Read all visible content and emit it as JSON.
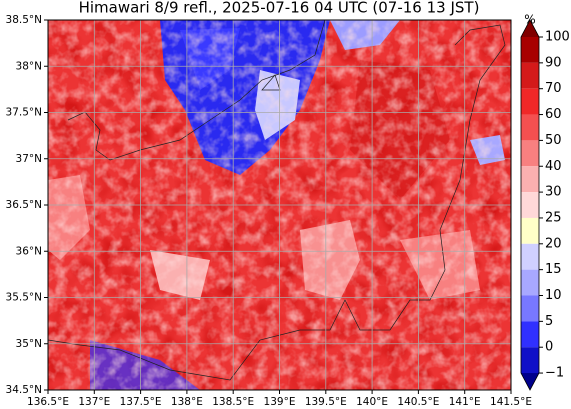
{
  "map": {
    "title": "Himawari 8/9 refl., 2025-07-16 04 UTC (07-16 13 JST)",
    "xlim": [
      136.5,
      141.5
    ],
    "ylim": [
      34.5,
      38.5
    ],
    "xticks": [
      {
        "value": 136.5,
        "label": "136.5°E"
      },
      {
        "value": 137,
        "label": "137°E"
      },
      {
        "value": 137.5,
        "label": "137.5°E"
      },
      {
        "value": 138,
        "label": "138°E"
      },
      {
        "value": 138.5,
        "label": "138.5°E"
      },
      {
        "value": 139,
        "label": "139°E"
      },
      {
        "value": 139.5,
        "label": "139.5°E"
      },
      {
        "value": 140,
        "label": "140°E"
      },
      {
        "value": 140.5,
        "label": "140.5°E"
      },
      {
        "value": 141,
        "label": "141°E"
      },
      {
        "value": 141.5,
        "label": "141.5°E"
      }
    ],
    "yticks": [
      {
        "value": 34.5,
        "label": "34.5°N"
      },
      {
        "value": 35,
        "label": "35°N"
      },
      {
        "value": 35.5,
        "label": "35.5°N"
      },
      {
        "value": 36,
        "label": "36°N"
      },
      {
        "value": 36.5,
        "label": "36.5°N"
      },
      {
        "value": 37,
        "label": "37°N"
      },
      {
        "value": 37.5,
        "label": "37.5°N"
      },
      {
        "value": 38,
        "label": "38°N"
      },
      {
        "value": 38.5,
        "label": "38.5°N"
      }
    ],
    "grid": true,
    "colorbar": {
      "label": "%",
      "ticks": [
        100,
        90,
        70,
        60,
        50,
        40,
        30,
        25,
        20,
        15,
        10,
        5,
        0,
        {
          "value": -1,
          "label": "−1"
        }
      ],
      "colors": [
        "#a80000",
        "#d41a1a",
        "#f02828",
        "#f45050",
        "#f88080",
        "#fbb0b0",
        "#ffd8d8",
        "#ffffc8",
        "#d0d0ff",
        "#a8a8ff",
        "#7878ff",
        "#3030ff",
        "#1010c8"
      ],
      "over_color": "#800000",
      "under_color": "#00008c"
    }
  }
}
